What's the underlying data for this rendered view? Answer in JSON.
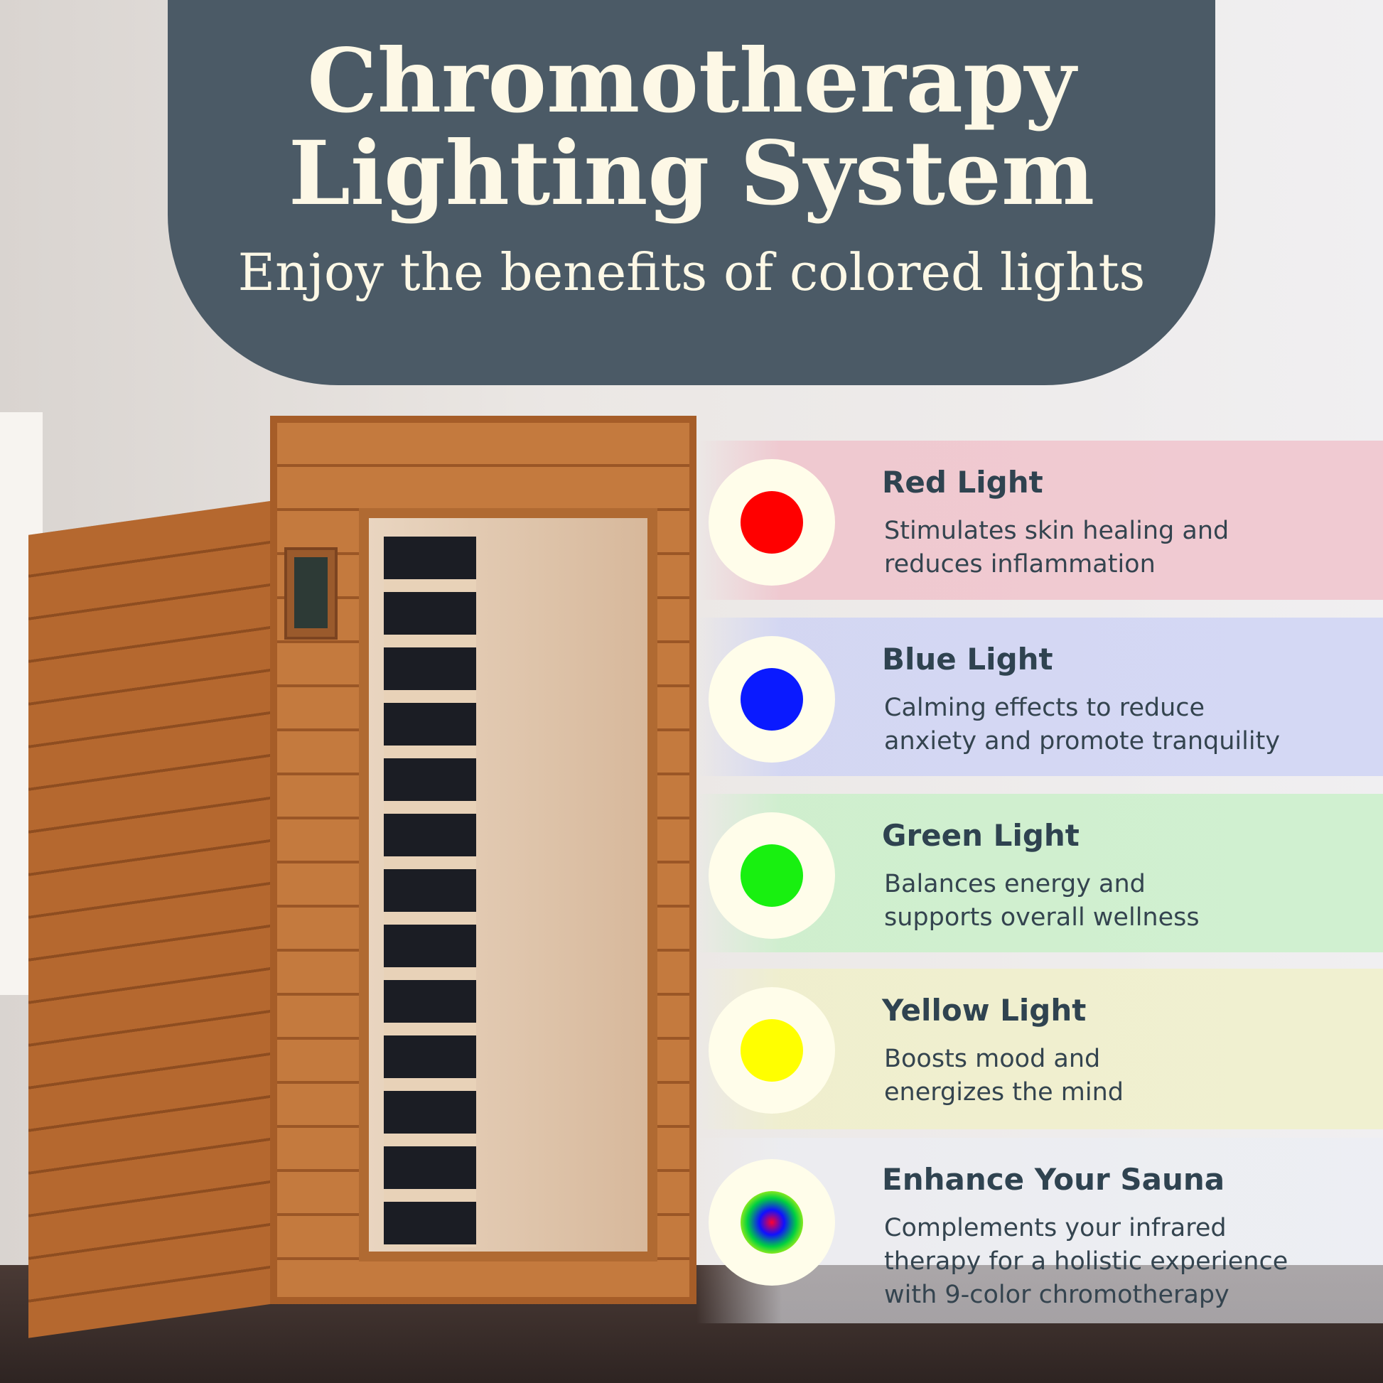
{
  "header": {
    "title_line1": "Chromotherapy",
    "title_line2": "Lighting System",
    "subtitle": "Enjoy the benefits of colored lights",
    "background_color": "#4b5a66"
  },
  "lights": [
    {
      "title": "Red Light",
      "lines": [
        "Stimulates skin healing and",
        "reduces inflammation"
      ],
      "color": "#ff0000",
      "band": "rgba(240,190,200,0.75)",
      "icon": "red-light-dot"
    },
    {
      "title": "Blue Light",
      "lines": [
        "Calming effects to reduce",
        "anxiety and promote tranquility"
      ],
      "color": "#0a1aff",
      "band": "rgba(205,210,245,0.8)",
      "icon": "blue-light-dot"
    },
    {
      "title": "Green Light",
      "lines": [
        "Balances energy and",
        "supports overall wellness"
      ],
      "color": "#18f010",
      "band": "rgba(200,240,200,0.8)",
      "icon": "green-light-dot"
    },
    {
      "title": "Yellow Light",
      "lines": [
        "Boosts mood and",
        "energizes the mind"
      ],
      "color": "#ffff00",
      "band": "rgba(240,240,200,0.8)",
      "icon": "yellow-light-dot"
    },
    {
      "title": "Enhance Your Sauna",
      "lines": [
        "Complements your infrared",
        "therapy for a holistic experience",
        "with 9-color chromotherapy"
      ],
      "color": "radial-gradient",
      "band": "rgba(235,238,245,0.6)",
      "icon": "rainbow-light-dot"
    }
  ]
}
